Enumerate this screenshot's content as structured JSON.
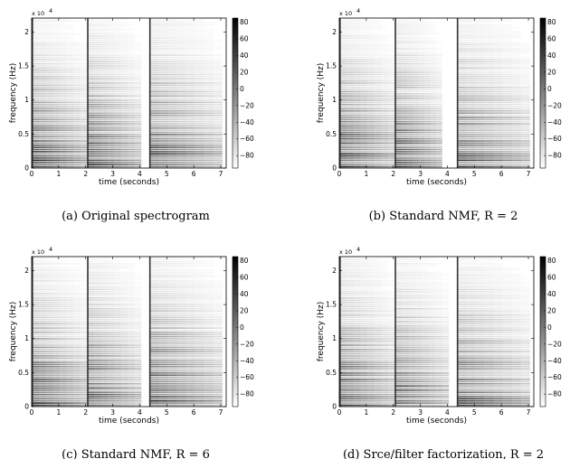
{
  "colors": {
    "ink": "#000000",
    "background": "#ffffff"
  },
  "chart_data": [
    {
      "type": "heatmap",
      "caption": "(a) Original spectrogram",
      "xlabel": "time (seconds)",
      "ylabel": "frequency (Hz)",
      "y_multiplier": "x 10",
      "y_exponent": "4",
      "xlim": [
        0,
        7.2
      ],
      "ylim": [
        0,
        22050
      ],
      "xticks": [
        0,
        1,
        2,
        3,
        4,
        5,
        6,
        7
      ],
      "yticks": [
        0,
        0.5,
        1,
        1.5,
        2
      ],
      "yticklabels": [
        "0",
        "0.5",
        "1",
        "1.5",
        "2"
      ],
      "colorbar_ticks": [
        80,
        60,
        40,
        20,
        0,
        -20,
        -40,
        -60,
        -80
      ],
      "colorbar_range": [
        -95,
        85
      ],
      "notes": [
        {
          "onset": 0.0,
          "offset": 2.05
        },
        {
          "onset": 2.05,
          "offset": 4.05
        },
        {
          "onset": 4.35,
          "offset": 7.05
        }
      ]
    },
    {
      "type": "heatmap",
      "caption": "(b) Standard NMF, R = 2",
      "xlabel": "time (seconds)",
      "ylabel": "frequency (Hz)",
      "y_multiplier": "x 10",
      "y_exponent": "4",
      "xlim": [
        0,
        7.2
      ],
      "ylim": [
        0,
        22050
      ],
      "xticks": [
        0,
        1,
        2,
        3,
        4,
        5,
        6,
        7
      ],
      "yticks": [
        0,
        0.5,
        1,
        1.5,
        2
      ],
      "yticklabels": [
        "0",
        "0.5",
        "1",
        "1.5",
        "2"
      ],
      "colorbar_ticks": [
        80,
        60,
        40,
        20,
        0,
        -20,
        -40,
        -60,
        -80
      ],
      "colorbar_range": [
        -95,
        85
      ],
      "notes": [
        {
          "onset": 0.0,
          "offset": 2.05
        },
        {
          "onset": 2.05,
          "offset": 3.8
        },
        {
          "onset": 4.35,
          "offset": 7.05
        }
      ]
    },
    {
      "type": "heatmap",
      "caption": "(c) Standard NMF, R = 6",
      "xlabel": "time (seconds)",
      "ylabel": "frequency (Hz)",
      "y_multiplier": "x 10",
      "y_exponent": "4",
      "xlim": [
        0,
        7.2
      ],
      "ylim": [
        0,
        22050
      ],
      "xticks": [
        0,
        1,
        2,
        3,
        4,
        5,
        6,
        7
      ],
      "yticks": [
        0,
        0.5,
        1,
        1.5,
        2
      ],
      "yticklabels": [
        "0",
        "0.5",
        "1",
        "1.5",
        "2"
      ],
      "colorbar_ticks": [
        80,
        60,
        40,
        20,
        0,
        -20,
        -40,
        -60,
        -80
      ],
      "colorbar_range": [
        -95,
        85
      ],
      "notes": [
        {
          "onset": 0.0,
          "offset": 2.05
        },
        {
          "onset": 2.05,
          "offset": 4.05
        },
        {
          "onset": 4.35,
          "offset": 7.05
        }
      ]
    },
    {
      "type": "heatmap",
      "caption": "(d) Srce/filter factorization, R = 2",
      "xlabel": "time (seconds)",
      "ylabel": "frequency (Hz)",
      "y_multiplier": "x 10",
      "y_exponent": "4",
      "xlim": [
        0,
        7.2
      ],
      "ylim": [
        0,
        22050
      ],
      "xticks": [
        0,
        1,
        2,
        3,
        4,
        5,
        6,
        7
      ],
      "yticks": [
        0,
        0.5,
        1,
        1.5,
        2
      ],
      "yticklabels": [
        "0",
        "0.5",
        "1",
        "1.5",
        "2"
      ],
      "colorbar_ticks": [
        80,
        60,
        40,
        20,
        0,
        -20,
        -40,
        -60,
        -80
      ],
      "colorbar_range": [
        -95,
        85
      ],
      "notes": [
        {
          "onset": 0.0,
          "offset": 2.05
        },
        {
          "onset": 2.05,
          "offset": 4.05
        },
        {
          "onset": 4.35,
          "offset": 7.05
        }
      ]
    }
  ]
}
